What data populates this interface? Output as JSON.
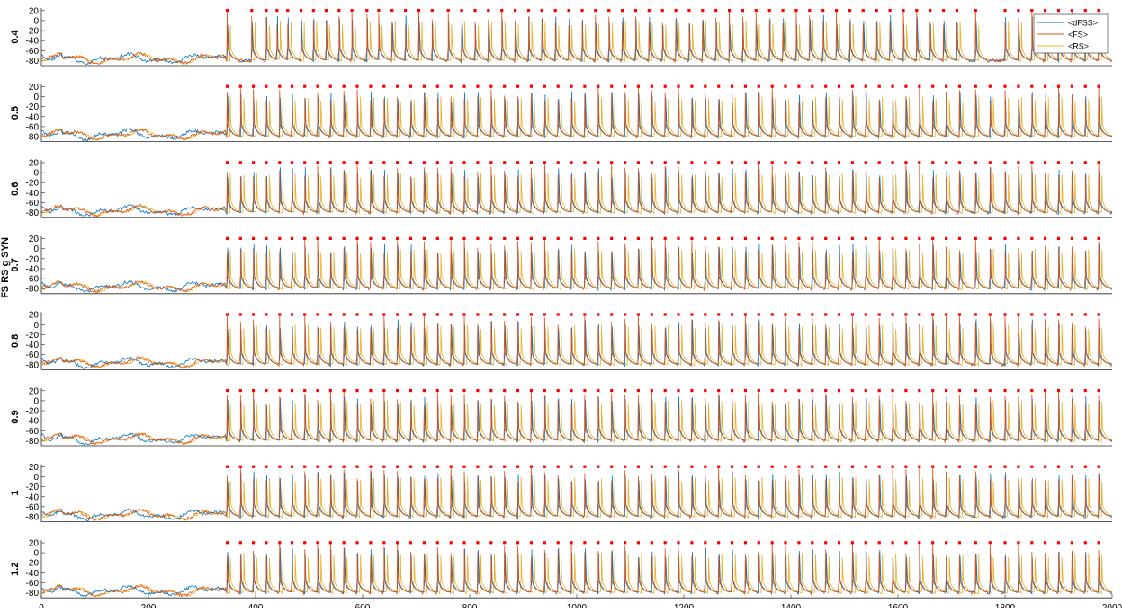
{
  "figure": {
    "ylabel": "FS RS g SYN",
    "xticks": [
      0,
      200,
      400,
      600,
      800,
      1000,
      1200,
      1400,
      1600,
      1800,
      2000
    ],
    "yticks": [
      20,
      0,
      -20,
      -40,
      -60,
      -80
    ],
    "legend": [
      "<dFSS>",
      "<FS>",
      "<RS>"
    ]
  },
  "colors": {
    "dFSS": "#0072BD",
    "FS": "#D95319",
    "RS": "#EDB120",
    "markers": "#FF0000"
  },
  "chart_data": {
    "type": "line",
    "xlim": [
      0,
      2000
    ],
    "ylim": [
      -90,
      25
    ],
    "legend_position": "top-right",
    "grid": false,
    "series_names": [
      "<dFSS>",
      "<FS>",
      "<RS>"
    ],
    "panels": [
      {
        "label": "0.4",
        "pulse_ms": [
          347,
          393,
          420,
          440,
          460,
          485,
          508,
          532,
          556,
          580,
          608,
          630,
          655,
          680,
          705,
          730,
          760,
          785,
          810,
          835,
          860,
          885,
          910,
          935,
          960,
          985,
          1010,
          1035,
          1060,
          1085,
          1110,
          1135,
          1160,
          1185,
          1210,
          1235,
          1260,
          1285,
          1310,
          1335,
          1360,
          1385,
          1410,
          1435,
          1460,
          1485,
          1510,
          1535,
          1560,
          1585,
          1610,
          1635,
          1660,
          1685,
          1710,
          1745,
          1800,
          1825,
          1850,
          1875,
          1900,
          1925,
          1950,
          1975
        ]
      },
      {
        "label": "0.5",
        "pulse_ms": [
          347,
          372,
          396,
          420,
          445,
          468,
          492,
          516,
          540,
          565,
          590,
          615,
          640,
          665,
          690,
          715,
          740,
          765,
          790,
          815,
          840,
          865,
          890,
          915,
          940,
          965,
          990,
          1015,
          1040,
          1065,
          1090,
          1115,
          1140,
          1165,
          1190,
          1215,
          1240,
          1265,
          1290,
          1315,
          1340,
          1365,
          1390,
          1415,
          1440,
          1465,
          1490,
          1515,
          1540,
          1565,
          1590,
          1615,
          1640,
          1665,
          1690,
          1715,
          1745,
          1772,
          1800,
          1825,
          1850,
          1875,
          1900,
          1925,
          1950,
          1975
        ]
      },
      {
        "label": "0.6",
        "pulse_ms": [
          347,
          372,
          396,
          420,
          445,
          468,
          492,
          516,
          540,
          565,
          590,
          615,
          640,
          665,
          690,
          715,
          740,
          765,
          790,
          815,
          840,
          865,
          890,
          915,
          940,
          965,
          990,
          1015,
          1040,
          1065,
          1090,
          1115,
          1140,
          1165,
          1190,
          1215,
          1240,
          1265,
          1290,
          1315,
          1340,
          1365,
          1390,
          1415,
          1440,
          1465,
          1490,
          1515,
          1540,
          1565,
          1590,
          1615,
          1640,
          1665,
          1690,
          1715,
          1745,
          1772,
          1800,
          1825,
          1850,
          1875,
          1900,
          1925,
          1950,
          1975
        ]
      },
      {
        "label": "0.7",
        "pulse_ms": [
          347,
          372,
          396,
          420,
          445,
          468,
          492,
          516,
          540,
          565,
          590,
          615,
          640,
          665,
          690,
          715,
          740,
          765,
          790,
          815,
          840,
          865,
          890,
          915,
          940,
          965,
          990,
          1015,
          1040,
          1065,
          1090,
          1115,
          1140,
          1165,
          1190,
          1215,
          1240,
          1265,
          1290,
          1315,
          1340,
          1365,
          1390,
          1415,
          1440,
          1465,
          1490,
          1515,
          1540,
          1565,
          1590,
          1615,
          1640,
          1665,
          1690,
          1715,
          1745,
          1772,
          1800,
          1825,
          1850,
          1875,
          1900,
          1925,
          1950,
          1975
        ]
      },
      {
        "label": "0.8",
        "pulse_ms": [
          347,
          372,
          396,
          420,
          445,
          468,
          492,
          516,
          540,
          565,
          590,
          615,
          640,
          665,
          690,
          715,
          740,
          765,
          790,
          815,
          840,
          865,
          890,
          915,
          940,
          965,
          990,
          1015,
          1040,
          1065,
          1090,
          1115,
          1140,
          1165,
          1190,
          1215,
          1240,
          1265,
          1290,
          1315,
          1340,
          1365,
          1390,
          1415,
          1440,
          1465,
          1490,
          1515,
          1540,
          1565,
          1590,
          1615,
          1640,
          1665,
          1690,
          1715,
          1745,
          1772,
          1800,
          1825,
          1850,
          1875,
          1900,
          1925,
          1950,
          1975
        ]
      },
      {
        "label": "0.9",
        "pulse_ms": [
          347,
          372,
          396,
          420,
          445,
          468,
          492,
          516,
          540,
          565,
          590,
          615,
          640,
          665,
          690,
          715,
          740,
          765,
          790,
          815,
          840,
          865,
          890,
          915,
          940,
          965,
          990,
          1015,
          1040,
          1065,
          1090,
          1115,
          1140,
          1165,
          1190,
          1215,
          1240,
          1265,
          1290,
          1315,
          1340,
          1365,
          1390,
          1415,
          1440,
          1465,
          1490,
          1515,
          1540,
          1565,
          1590,
          1615,
          1640,
          1665,
          1690,
          1715,
          1745,
          1772,
          1800,
          1825,
          1850,
          1875,
          1900,
          1925,
          1950,
          1975
        ]
      },
      {
        "label": "1",
        "pulse_ms": [
          347,
          372,
          396,
          420,
          445,
          468,
          492,
          516,
          540,
          565,
          590,
          615,
          640,
          665,
          690,
          715,
          740,
          765,
          790,
          815,
          840,
          865,
          890,
          915,
          940,
          965,
          990,
          1015,
          1040,
          1065,
          1090,
          1115,
          1140,
          1165,
          1190,
          1215,
          1240,
          1265,
          1290,
          1315,
          1340,
          1365,
          1390,
          1415,
          1440,
          1465,
          1490,
          1515,
          1540,
          1565,
          1590,
          1615,
          1640,
          1665,
          1690,
          1715,
          1745,
          1772,
          1800,
          1825,
          1850,
          1875,
          1900,
          1925,
          1950,
          1975
        ]
      },
      {
        "label": "1.2",
        "pulse_ms": [
          347,
          372,
          396,
          420,
          445,
          468,
          492,
          516,
          540,
          565,
          590,
          615,
          640,
          665,
          690,
          715,
          740,
          765,
          790,
          815,
          840,
          865,
          890,
          915,
          940,
          965,
          990,
          1015,
          1040,
          1065,
          1090,
          1115,
          1140,
          1165,
          1190,
          1215,
          1240,
          1265,
          1290,
          1315,
          1340,
          1365,
          1390,
          1415,
          1440,
          1465,
          1490,
          1515,
          1540,
          1565,
          1590,
          1615,
          1640,
          1665,
          1690,
          1715,
          1745,
          1772,
          1800,
          1825,
          1850,
          1875,
          1900,
          1925,
          1950,
          1975
        ]
      }
    ]
  }
}
